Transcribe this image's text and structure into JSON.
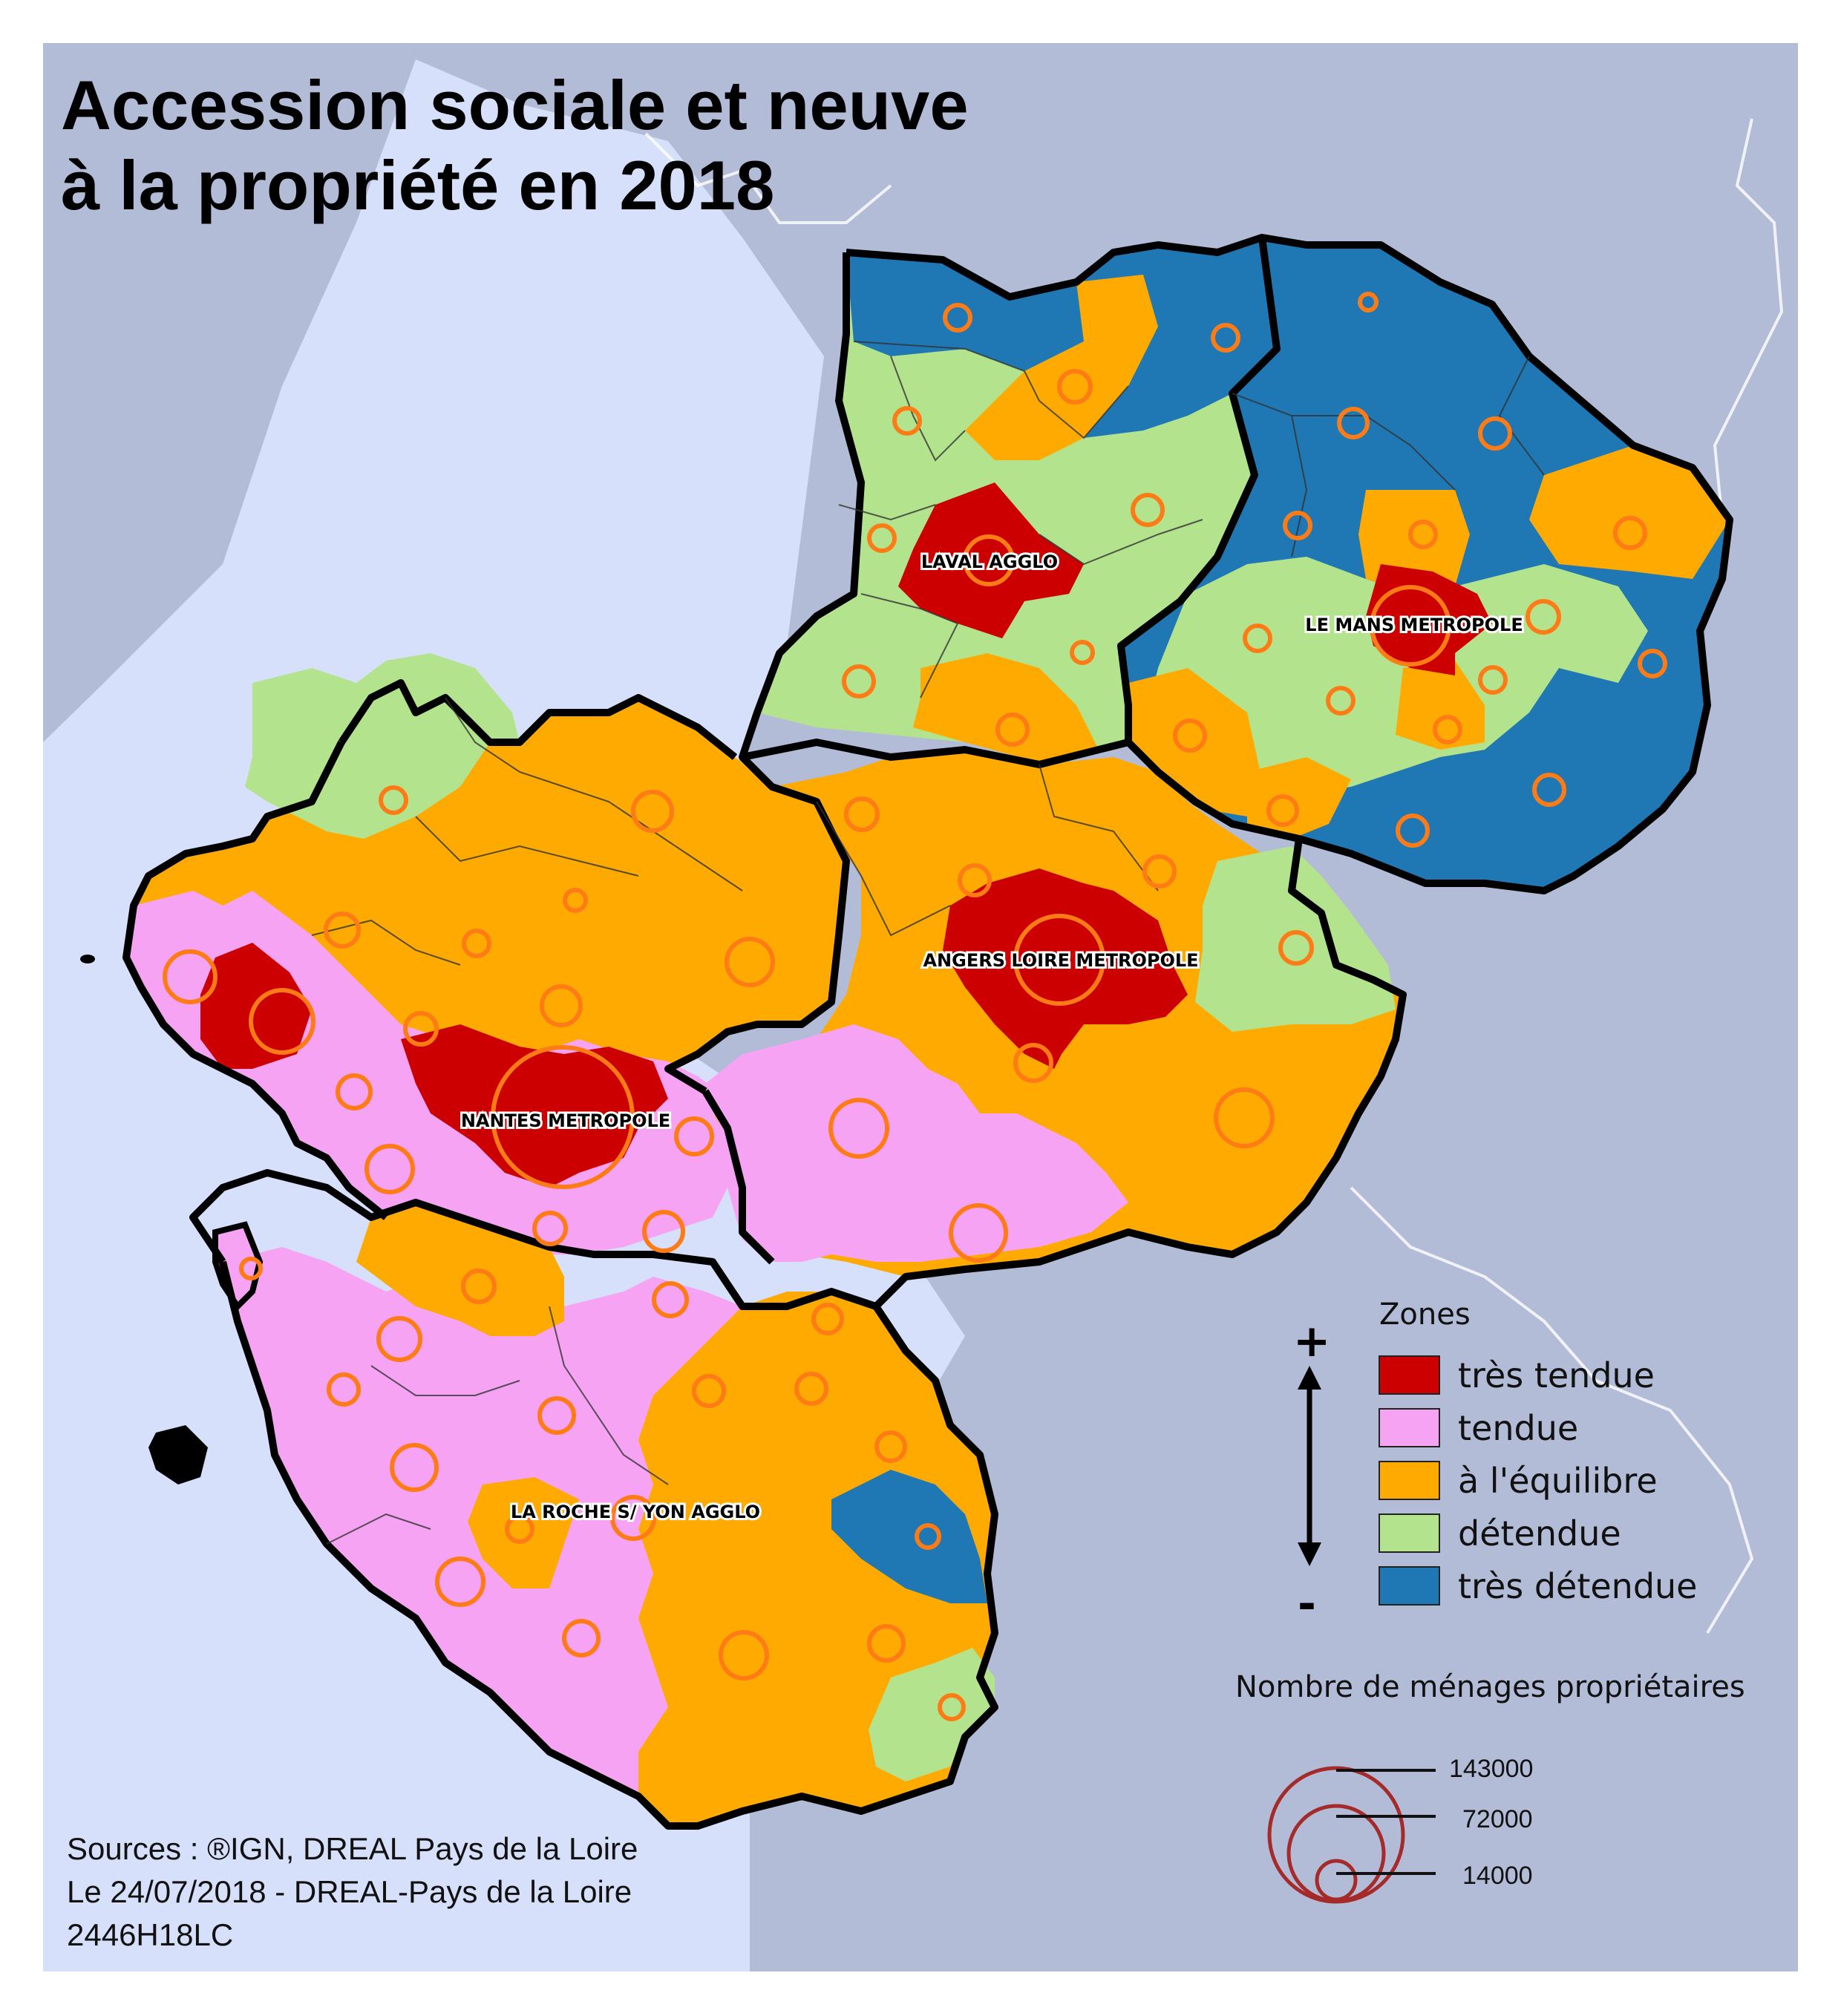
{
  "title": {
    "line1": "Accession sociale et neuve",
    "line2": "à la propriété en 2018"
  },
  "places": {
    "laval": "LAVAL AGGLO",
    "le_mans": "LE MANS METROPOLE",
    "angers": "ANGERS LOIRE METROPOLE",
    "nantes": "NANTES METROPOLE",
    "la_roche": "LA ROCHE S/ YON AGGLO"
  },
  "legend": {
    "zones_title": "Zones",
    "plus": "+",
    "minus": "-",
    "zones": [
      {
        "label": "très tendue",
        "color": "#cc0000"
      },
      {
        "label": "tendue",
        "color": "#f5a3f2"
      },
      {
        "label": "à l'équilibre",
        "color": "#ffaa00"
      },
      {
        "label": "détendue",
        "color": "#b3e38c"
      },
      {
        "label": "très détendue",
        "color": "#1f78b4"
      }
    ],
    "size_title": "Nombre de ménages propriétaires",
    "sizes": [
      "143000",
      "72000",
      "14000"
    ]
  },
  "sources": {
    "line1": "Sources : ®IGN, DREAL Pays de la Loire",
    "line2": "Le 24/07/2018 - DREAL-Pays de la Loire",
    "line3": "2446H18LC"
  },
  "colors": {
    "sea": "#d6e0fa",
    "land_outside": "#b3bcd7",
    "circle": "#ff7b16",
    "size_circle": "#a52a2a"
  }
}
